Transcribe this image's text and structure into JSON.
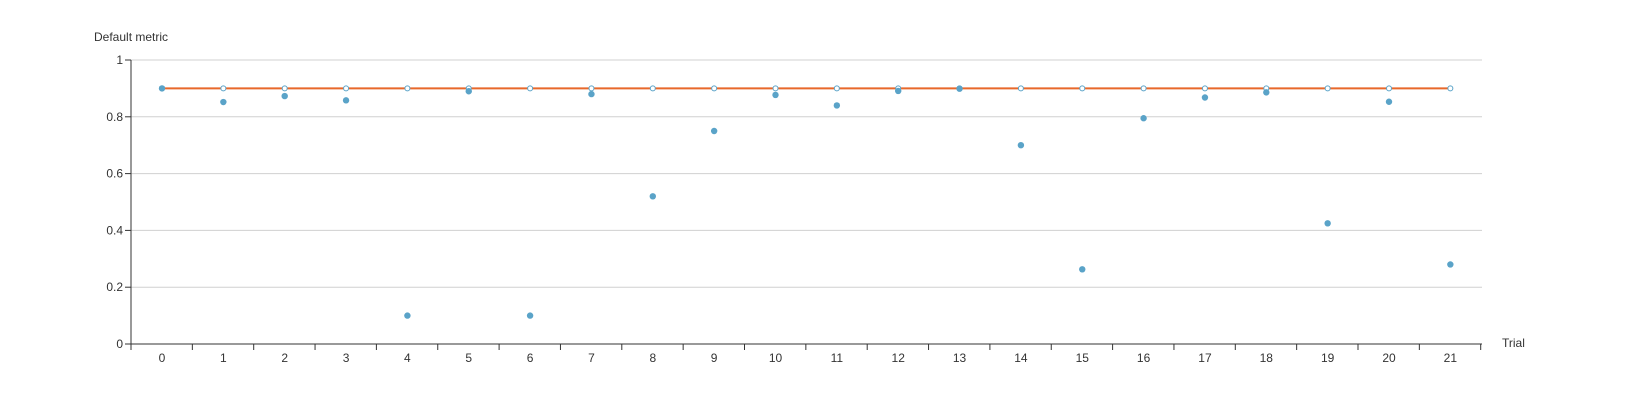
{
  "chart_data": {
    "type": "scatter",
    "ylabel": "Default metric",
    "xlabel": "Trial",
    "x": [
      0,
      1,
      2,
      3,
      4,
      5,
      6,
      7,
      8,
      9,
      10,
      11,
      12,
      13,
      14,
      15,
      16,
      17,
      18,
      19,
      20,
      21
    ],
    "ylim": [
      0,
      1
    ],
    "yticks": [
      "0",
      "0.2",
      "0.4",
      "0.6",
      "0.8",
      "1"
    ],
    "grid": true,
    "series": [
      {
        "kind": "scatter",
        "color": "#5aa3c8",
        "values": [
          0.9,
          0.852,
          0.873,
          0.858,
          0.1,
          0.89,
          0.1,
          0.88,
          0.52,
          0.75,
          0.877,
          0.84,
          0.891,
          0.899,
          0.7,
          0.263,
          0.795,
          0.868,
          0.886,
          0.425,
          0.853,
          0.28
        ]
      },
      {
        "kind": "line",
        "color": "#e8682a",
        "marker_color": "#5aa3c8",
        "values": [
          0.9,
          0.9,
          0.9,
          0.9,
          0.9,
          0.9,
          0.9,
          0.9,
          0.9,
          0.9,
          0.9,
          0.9,
          0.9,
          0.9,
          0.9,
          0.9,
          0.9,
          0.9,
          0.9,
          0.9,
          0.9,
          0.9
        ]
      }
    ]
  }
}
